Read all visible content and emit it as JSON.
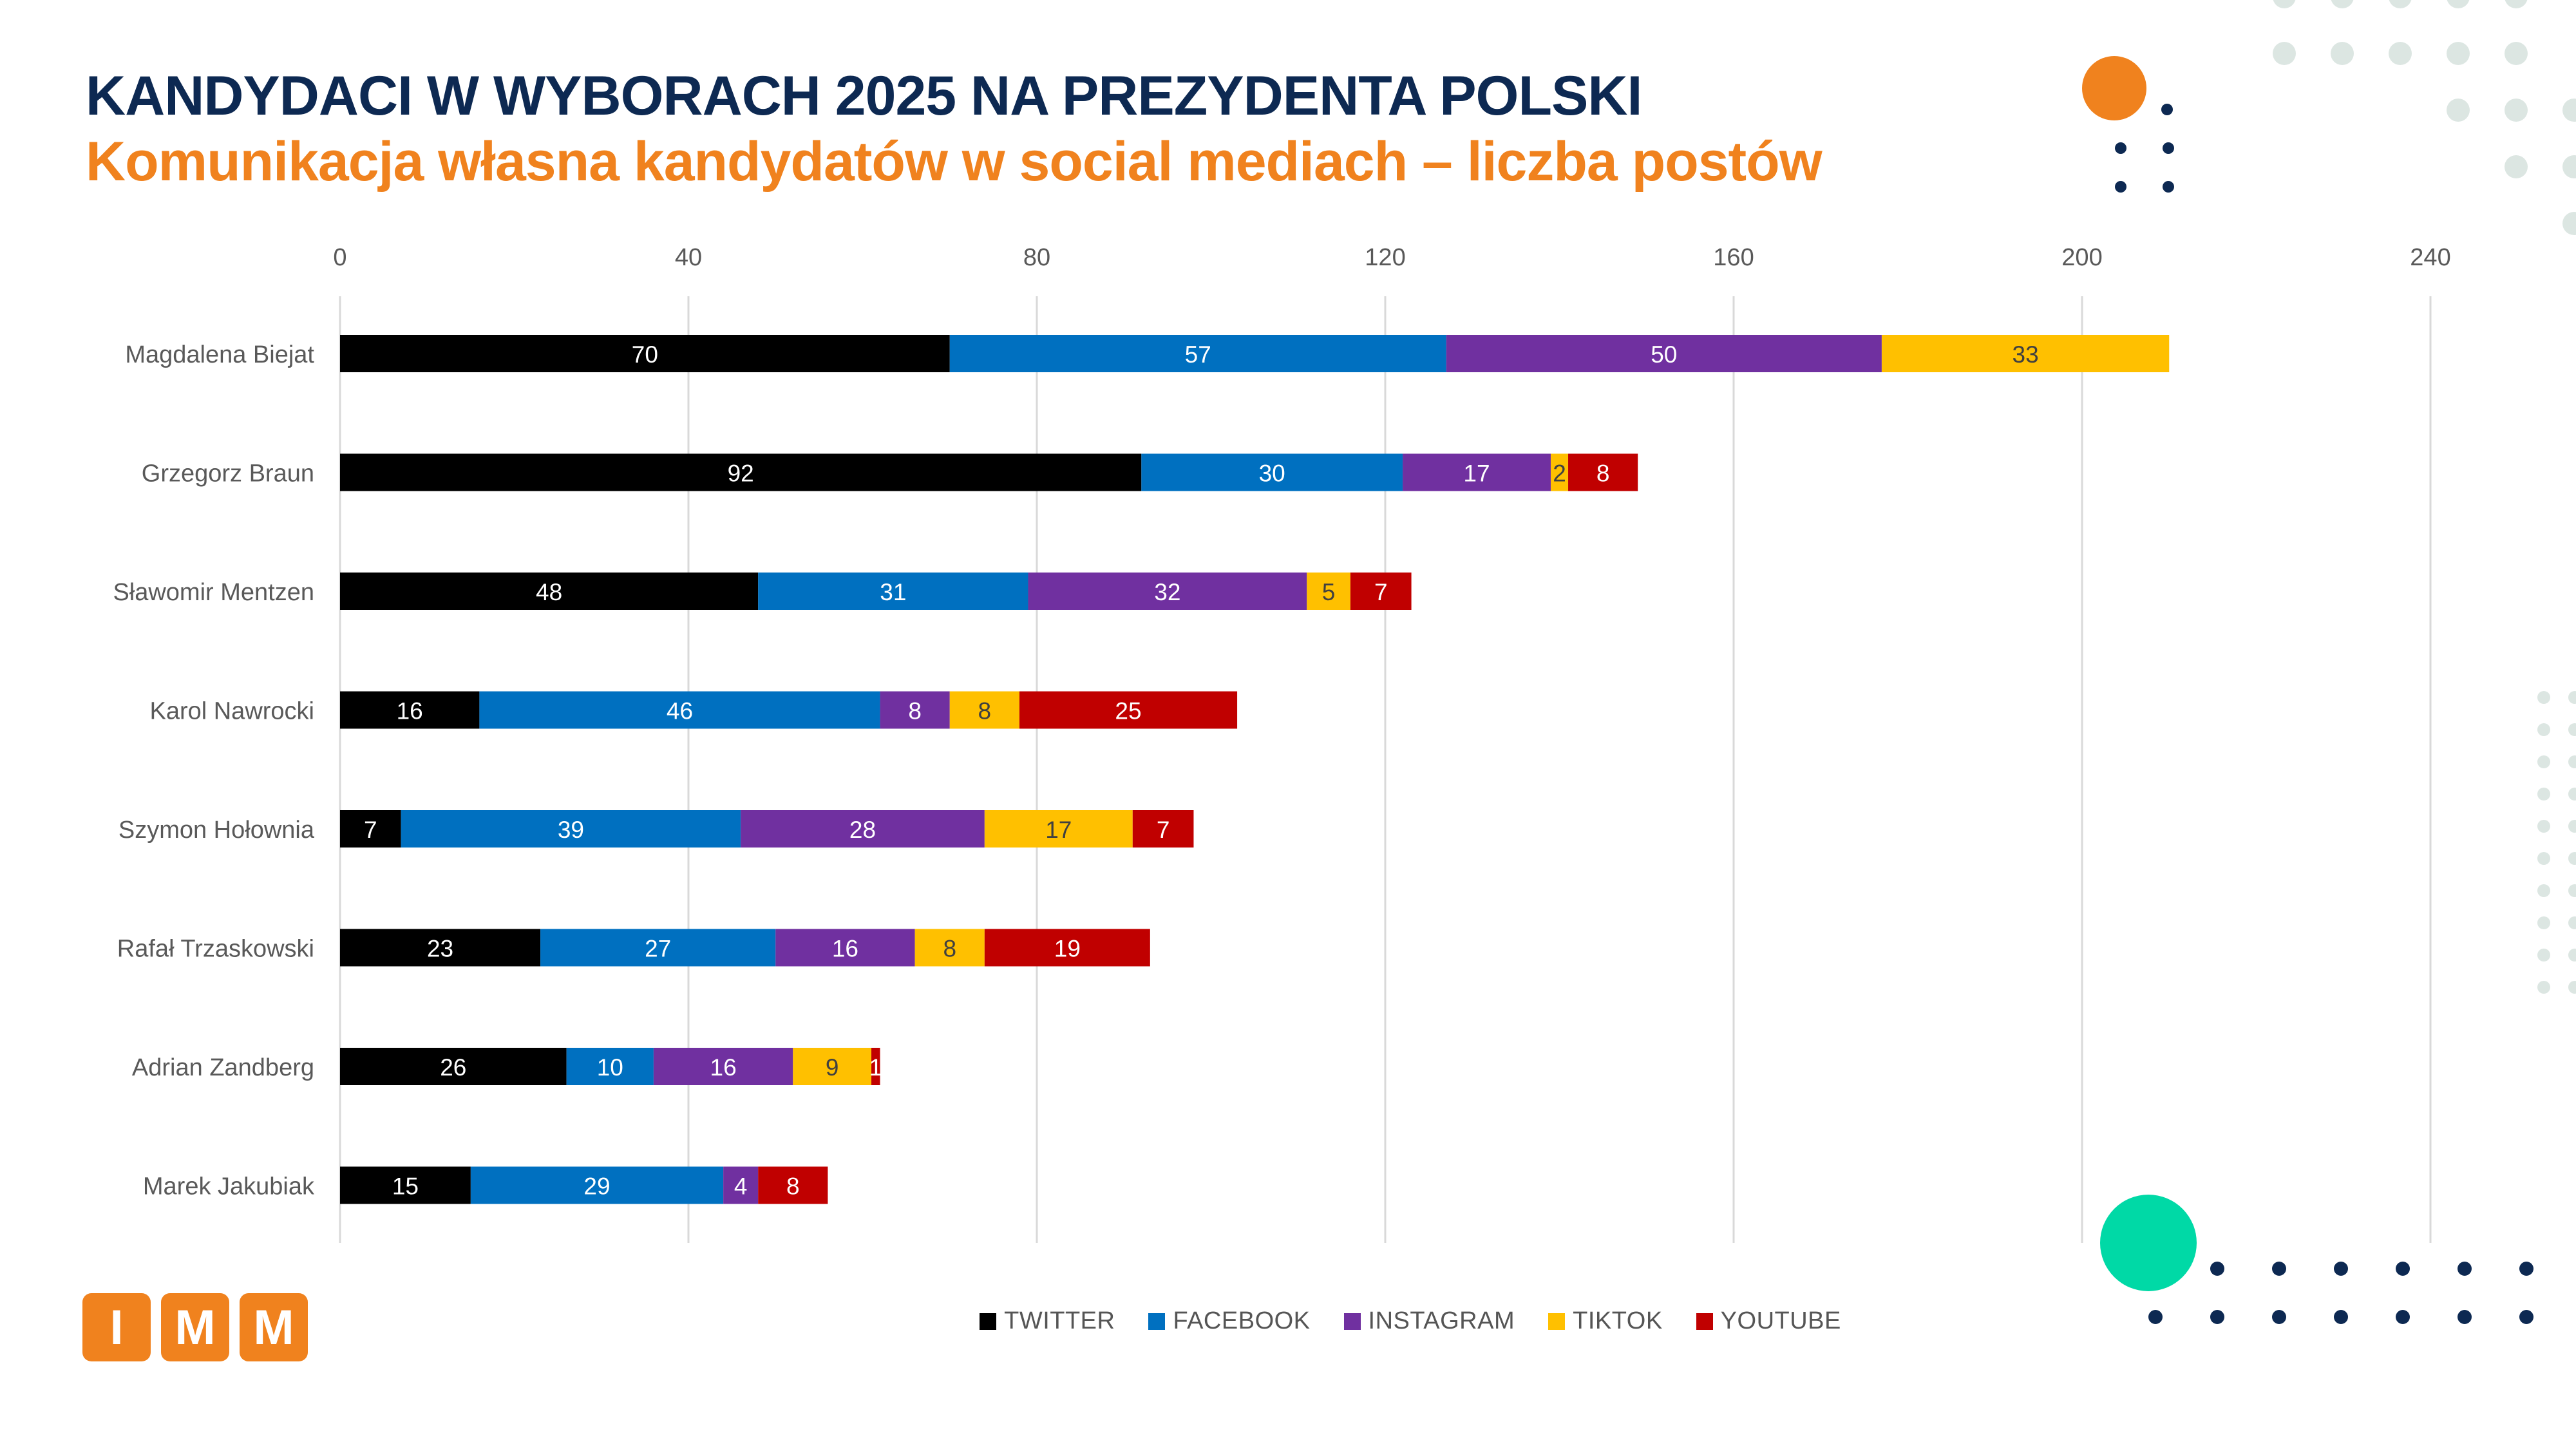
{
  "colors": {
    "title": "#0d2952",
    "subtitle": "#f0821e",
    "brand_orange": "#f0821e",
    "mint": "#00d9a6",
    "navy": "#0d2952",
    "dot_grey": "#dce6e2"
  },
  "logo": {
    "letters": [
      "I",
      "M",
      "M"
    ]
  },
  "chart_data": {
    "type": "bar",
    "orientation": "horizontal",
    "stacked": true,
    "title": "KANDYDACI W WYBORACH 2025 NA PREZYDENTA POLSKI",
    "subtitle": "Komunikacja własna kandydatów w social mediach – liczba postów",
    "xlim": [
      0,
      240
    ],
    "x_ticks": [
      0,
      40,
      80,
      120,
      160,
      200,
      240
    ],
    "grid": true,
    "legend_position": "bottom",
    "categories": [
      "Magdalena Biejat",
      "Grzegorz Braun",
      "Sławomir Mentzen",
      "Karol Nawrocki",
      "Szymon Hołownia",
      "Rafał Trzaskowski",
      "Adrian Zandberg",
      "Marek Jakubiak"
    ],
    "series": [
      {
        "name": "TWITTER",
        "color": "#000000",
        "label_color": "#ffffff",
        "values": [
          70,
          92,
          48,
          16,
          7,
          23,
          26,
          15
        ]
      },
      {
        "name": "FACEBOOK",
        "color": "#0070c0",
        "label_color": "#ffffff",
        "values": [
          57,
          30,
          31,
          46,
          39,
          27,
          10,
          29
        ]
      },
      {
        "name": "INSTAGRAM",
        "color": "#7030a0",
        "label_color": "#ffffff",
        "values": [
          50,
          17,
          32,
          8,
          28,
          16,
          16,
          4
        ]
      },
      {
        "name": "TIKTOK",
        "color": "#ffc000",
        "label_color": "#404040",
        "values": [
          33,
          2,
          5,
          8,
          17,
          8,
          9,
          0
        ]
      },
      {
        "name": "YOUTUBE",
        "color": "#c00000",
        "label_color": "#ffffff",
        "values": [
          0,
          8,
          7,
          25,
          7,
          19,
          1,
          8
        ]
      }
    ]
  }
}
